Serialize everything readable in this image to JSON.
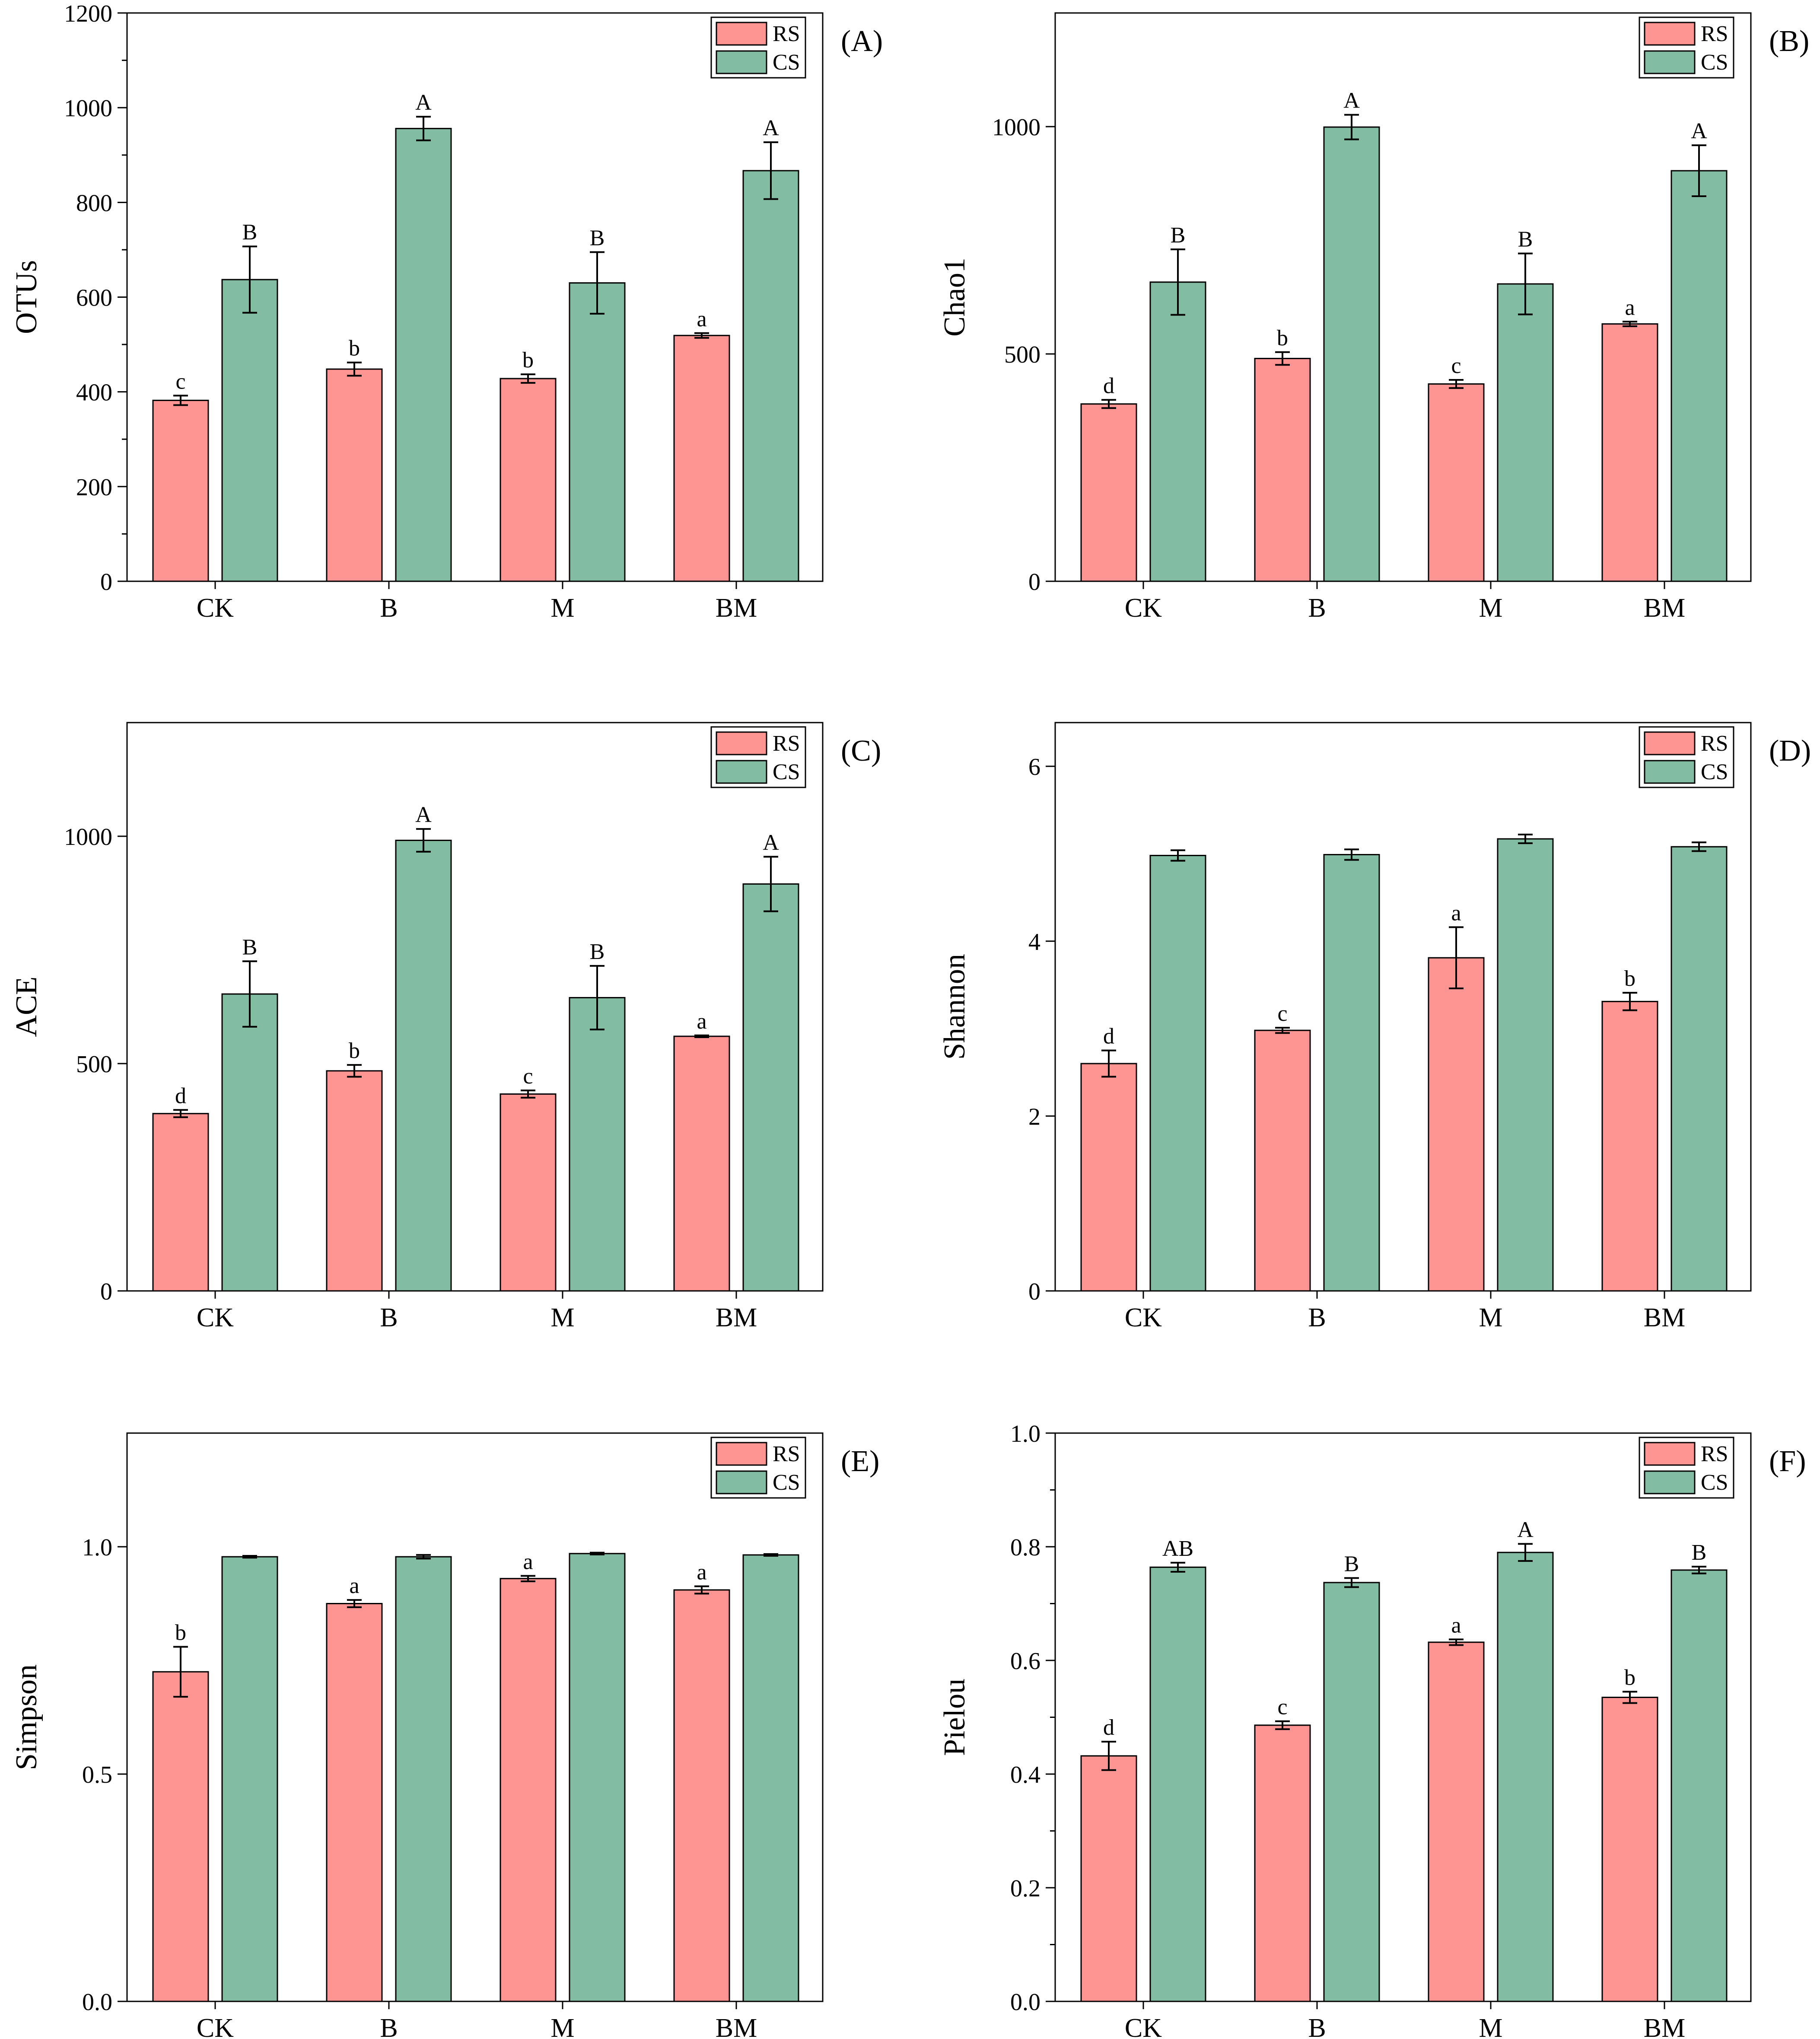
{
  "colors": {
    "RS": "#ff9593",
    "CS": "#82bda3",
    "axis": "#000000"
  },
  "legend": [
    "RS",
    "CS"
  ],
  "chart_data": [
    {
      "panel": "(A)",
      "type": "bar",
      "ylabel": "OTUs",
      "ylim": [
        0,
        1200
      ],
      "yticks": [
        0,
        200,
        400,
        600,
        800,
        1000,
        1200
      ],
      "yticklabels": [
        "0",
        "200",
        "400",
        "600",
        "800",
        "1000",
        "1200"
      ],
      "minor_ticks": true,
      "categories": [
        "CK",
        "B",
        "M",
        "BM"
      ],
      "series": [
        {
          "name": "RS",
          "values": [
            382,
            448,
            428,
            519
          ],
          "errors": [
            10,
            14,
            9,
            5
          ],
          "letters": [
            "c",
            "b",
            "b",
            "a"
          ]
        },
        {
          "name": "CS",
          "values": [
            637,
            956,
            630,
            867
          ],
          "errors": [
            70,
            25,
            65,
            60
          ],
          "letters": [
            "B",
            "A",
            "B",
            "A"
          ]
        }
      ]
    },
    {
      "panel": "(B)",
      "type": "bar",
      "ylabel": "Chao1",
      "ylim": [
        0,
        1250
      ],
      "yticks": [
        0,
        500,
        1000
      ],
      "yticklabels": [
        "0",
        "500",
        "1000"
      ],
      "minor_ticks": false,
      "categories": [
        "CK",
        "B",
        "M",
        "BM"
      ],
      "series": [
        {
          "name": "RS",
          "values": [
            390,
            490,
            434,
            566
          ],
          "errors": [
            9,
            14,
            9,
            5
          ],
          "letters": [
            "d",
            "b",
            "c",
            "a"
          ]
        },
        {
          "name": "CS",
          "values": [
            658,
            999,
            654,
            903
          ],
          "errors": [
            72,
            27,
            67,
            56
          ],
          "letters": [
            "B",
            "A",
            "B",
            "A"
          ]
        }
      ]
    },
    {
      "panel": "(C)",
      "type": "bar",
      "ylabel": "ACE",
      "ylim": [
        0,
        1250
      ],
      "yticks": [
        0,
        500,
        1000
      ],
      "yticklabels": [
        "0",
        "500",
        "1000"
      ],
      "minor_ticks": false,
      "categories": [
        "CK",
        "B",
        "M",
        "BM"
      ],
      "series": [
        {
          "name": "RS",
          "values": [
            390,
            484,
            433,
            560
          ],
          "errors": [
            8,
            13,
            8,
            2
          ],
          "letters": [
            "d",
            "b",
            "c",
            "a"
          ]
        },
        {
          "name": "CS",
          "values": [
            653,
            991,
            645,
            895
          ],
          "errors": [
            72,
            25,
            70,
            60
          ],
          "letters": [
            "B",
            "A",
            "B",
            "A"
          ]
        }
      ]
    },
    {
      "panel": "(D)",
      "type": "bar",
      "ylabel": "Shannon",
      "ylim": [
        0,
        6.5
      ],
      "yticks": [
        0,
        2,
        4,
        6
      ],
      "yticklabels": [
        "0",
        "2",
        "4",
        "6"
      ],
      "minor_ticks": false,
      "categories": [
        "CK",
        "B",
        "M",
        "BM"
      ],
      "series": [
        {
          "name": "RS",
          "values": [
            2.6,
            2.98,
            3.81,
            3.31
          ],
          "errors": [
            0.15,
            0.03,
            0.35,
            0.1
          ],
          "letters": [
            "d",
            "c",
            "a",
            "b"
          ]
        },
        {
          "name": "CS",
          "values": [
            4.98,
            4.99,
            5.17,
            5.08
          ],
          "errors": [
            0.06,
            0.06,
            0.05,
            0.05
          ],
          "letters": [
            "",
            "",
            "",
            ""
          ]
        }
      ]
    },
    {
      "panel": "(E)",
      "type": "bar",
      "ylabel": "Simpson",
      "ylim": [
        0,
        1.25
      ],
      "yticks": [
        0,
        0.5,
        1.0
      ],
      "yticklabels": [
        "0.0",
        "0.5",
        "1.0"
      ],
      "minor_ticks": false,
      "categories": [
        "CK",
        "B",
        "M",
        "BM"
      ],
      "series": [
        {
          "name": "RS",
          "values": [
            0.725,
            0.875,
            0.93,
            0.905
          ],
          "errors": [
            0.055,
            0.008,
            0.006,
            0.008
          ],
          "letters": [
            "b",
            "a",
            "a",
            "a"
          ]
        },
        {
          "name": "CS",
          "values": [
            0.978,
            0.978,
            0.985,
            0.982
          ],
          "errors": [
            0.002,
            0.004,
            0.002,
            0.002
          ],
          "letters": [
            "",
            "",
            "",
            ""
          ]
        }
      ]
    },
    {
      "panel": "(F)",
      "type": "bar",
      "ylabel": "Pielou",
      "ylim": [
        0,
        1.0
      ],
      "yticks": [
        0,
        0.2,
        0.4,
        0.6,
        0.8,
        1.0
      ],
      "yticklabels": [
        "0.0",
        "0.2",
        "0.4",
        "0.6",
        "0.8",
        "1.0"
      ],
      "minor_ticks": true,
      "categories": [
        "CK",
        "B",
        "M",
        "BM"
      ],
      "series": [
        {
          "name": "RS",
          "values": [
            0.432,
            0.486,
            0.632,
            0.535
          ],
          "errors": [
            0.025,
            0.007,
            0.005,
            0.01
          ],
          "letters": [
            "d",
            "c",
            "a",
            "b"
          ]
        },
        {
          "name": "CS",
          "values": [
            0.764,
            0.737,
            0.79,
            0.759
          ],
          "errors": [
            0.008,
            0.008,
            0.015,
            0.006
          ],
          "letters": [
            "AB",
            "B",
            "A",
            "B"
          ]
        }
      ]
    }
  ]
}
